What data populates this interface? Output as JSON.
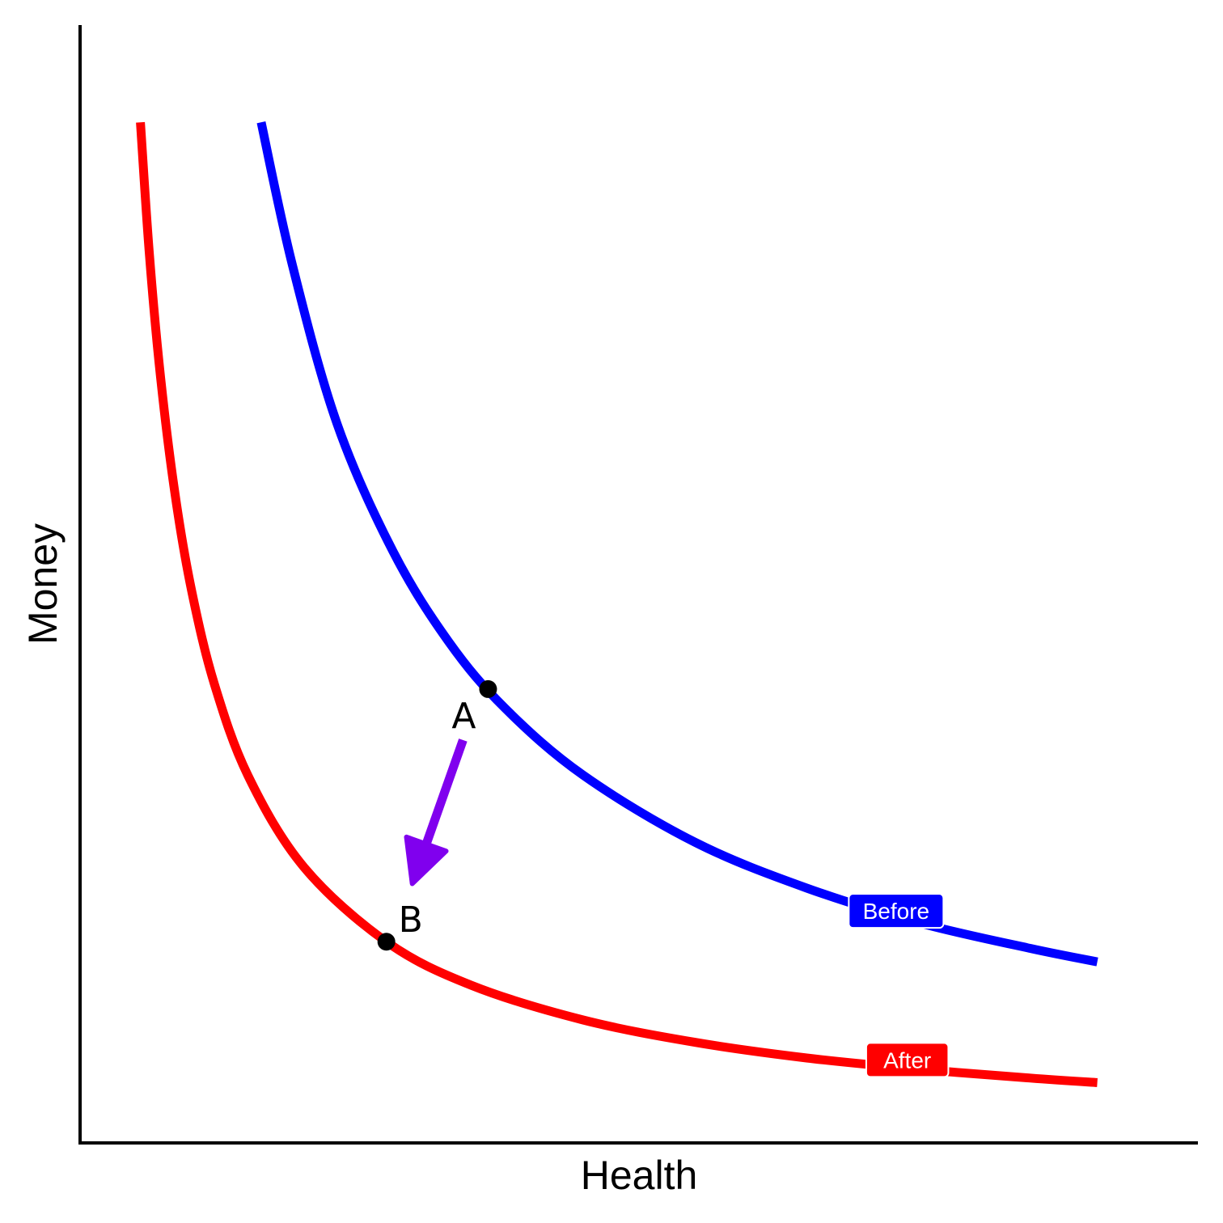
{
  "chart_data": {
    "type": "line",
    "xlabel": "Health",
    "ylabel": "Money",
    "xlim": [
      0,
      10
    ],
    "ylim": [
      0,
      10
    ],
    "grid": false,
    "legend": "inline labels at right end of curves",
    "series": [
      {
        "name": "Before",
        "color": "#0000ff",
        "x": [
          1.62,
          1.9,
          2.3,
          2.8,
          3.3,
          3.8,
          4.5,
          5.5,
          6.5,
          7.5,
          8.5,
          9.1
        ],
        "y": [
          9.13,
          7.85,
          6.43,
          5.29,
          4.48,
          3.89,
          3.29,
          2.69,
          2.28,
          1.97,
          1.74,
          1.62
        ]
      },
      {
        "name": "After",
        "color": "#ff0000",
        "x": [
          0.54,
          0.62,
          0.72,
          0.85,
          1.0,
          1.2,
          1.5,
          2.0,
          2.74,
          3.5,
          4.5,
          5.5,
          6.5,
          7.5,
          8.5,
          9.1
        ],
        "y": [
          9.13,
          7.95,
          6.85,
          5.8,
          4.93,
          4.11,
          3.29,
          2.47,
          1.8,
          1.41,
          1.1,
          0.9,
          0.76,
          0.66,
          0.58,
          0.54
        ]
      }
    ],
    "points": [
      {
        "label": "A",
        "x": 3.65,
        "y": 4.06,
        "series": "Before"
      },
      {
        "label": "B",
        "x": 2.74,
        "y": 1.8,
        "series": "After"
      }
    ],
    "arrow": {
      "from": "A",
      "to": "B",
      "color": "#8000ee"
    }
  }
}
